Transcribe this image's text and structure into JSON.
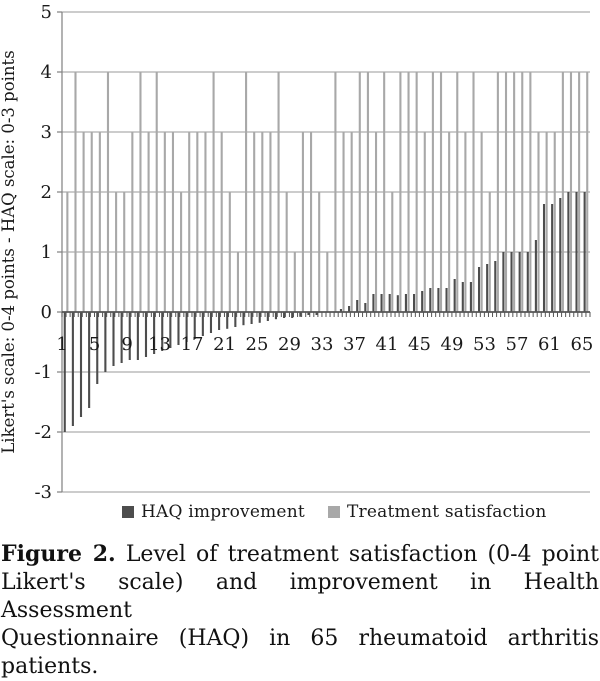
{
  "figure": {
    "y_axis_title": "Likert's scale: 0-4 points - HAQ scale: 0-3 points",
    "legend": {
      "items": [
        {
          "label": "HAQ improvement",
          "color": "#4d4d4d"
        },
        {
          "label": "Treatment satisfaction",
          "color": "#a8a8a8"
        }
      ]
    },
    "caption": {
      "label": "Figure 2.",
      "line1": " Level of treatment satisfaction (0-4 point",
      "line2": "Likert's scale) and improvement in Health Assessment",
      "line3": "Questionnaire (HAQ) in 65 rheumatoid arthritis patients."
    }
  },
  "chart_data": {
    "type": "bar",
    "title": "",
    "xlabel": "",
    "ylabel": "Likert's scale: 0-4 points - HAQ scale: 0-3 points",
    "ylim": [
      -3,
      5
    ],
    "yticks": [
      5,
      4,
      3,
      2,
      1,
      0,
      -1,
      -2,
      -3
    ],
    "xtick_labels": [
      "1",
      "5",
      "9",
      "13",
      "17",
      "21",
      "25",
      "29",
      "33",
      "37",
      "41",
      "45",
      "49",
      "53",
      "57",
      "61",
      "65"
    ],
    "xtick_positions": [
      1,
      5,
      9,
      13,
      17,
      21,
      25,
      29,
      33,
      37,
      41,
      45,
      49,
      53,
      57,
      61,
      65
    ],
    "grid": "horizontal",
    "legend_position": "bottom",
    "n_categories": 65,
    "categories": [
      1,
      2,
      3,
      4,
      5,
      6,
      7,
      8,
      9,
      10,
      11,
      12,
      13,
      14,
      15,
      16,
      17,
      18,
      19,
      20,
      21,
      22,
      23,
      24,
      25,
      26,
      27,
      28,
      29,
      30,
      31,
      32,
      33,
      34,
      35,
      36,
      37,
      38,
      39,
      40,
      41,
      42,
      43,
      44,
      45,
      46,
      47,
      48,
      49,
      50,
      51,
      52,
      53,
      54,
      55,
      56,
      57,
      58,
      59,
      60,
      61,
      62,
      63,
      64,
      65
    ],
    "series": [
      {
        "name": "HAQ improvement",
        "color": "#4d4d4d",
        "values": [
          -2.0,
          -1.9,
          -1.75,
          -1.6,
          -1.2,
          -1.0,
          -0.9,
          -0.85,
          -0.8,
          -0.8,
          -0.75,
          -0.7,
          -0.65,
          -0.6,
          -0.55,
          -0.5,
          -0.45,
          -0.4,
          -0.35,
          -0.3,
          -0.28,
          -0.25,
          -0.22,
          -0.2,
          -0.18,
          -0.15,
          -0.12,
          -0.1,
          -0.1,
          -0.08,
          -0.05,
          -0.05,
          0,
          0,
          0.05,
          0.1,
          0.2,
          0.15,
          0.3,
          0.3,
          0.3,
          0.28,
          0.3,
          0.3,
          0.35,
          0.4,
          0.4,
          0.4,
          0.55,
          0.5,
          0.5,
          0.75,
          0.8,
          0.85,
          1.0,
          1.0,
          1.0,
          1.0,
          1.2,
          1.8,
          1.8,
          1.9,
          2.0,
          2.0,
          2.0
        ]
      },
      {
        "name": "Treatment satisfaction",
        "color": "#a8a8a8",
        "values": [
          2,
          4,
          3,
          3,
          3,
          4,
          2,
          2,
          3,
          4,
          3,
          4,
          3,
          3,
          2,
          3,
          3,
          3,
          4,
          3,
          2,
          1,
          4,
          3,
          3,
          3,
          4,
          2,
          1,
          3,
          3,
          2,
          1,
          4,
          3,
          3,
          4,
          4,
          3,
          4,
          2,
          4,
          4,
          4,
          3,
          4,
          4,
          3,
          4,
          3,
          4,
          3,
          2,
          4,
          4,
          4,
          4,
          4,
          3,
          3,
          3,
          4,
          4,
          4,
          4
        ]
      }
    ]
  }
}
